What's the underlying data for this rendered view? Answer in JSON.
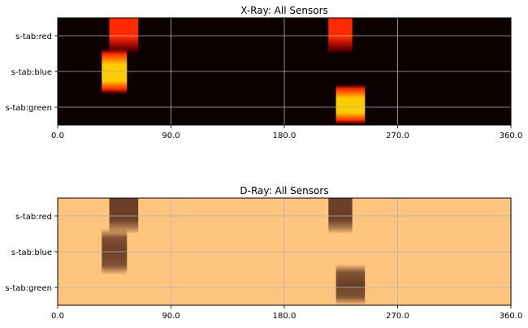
{
  "chart_data": [
    {
      "type": "heatmap",
      "title": "X-Ray: All Sensors",
      "xlabel": "",
      "ylabel": "",
      "xlim": [
        0,
        360
      ],
      "x_ticks": [
        "0.0",
        "90.0",
        "180.0",
        "270.0",
        "360.0"
      ],
      "y_ticks": [
        "s-tab:red",
        "s-tab:blue",
        "s-tab:green"
      ],
      "grid": true,
      "colormap": "hot",
      "colors": {
        "background": "#0d0000",
        "low": "#c00000",
        "mid": "#ff2a00",
        "high": "#ffcc00"
      },
      "series": [
        {
          "name": "s-tab:red",
          "blobs": [
            {
              "x_start": 41,
              "x_end": 64,
              "level": 0.85
            },
            {
              "x_start": 215,
              "x_end": 234,
              "level": 0.85
            }
          ]
        },
        {
          "name": "s-tab:blue",
          "blobs": [
            {
              "x_start": 35,
              "x_end": 55,
              "level": 1.0
            }
          ]
        },
        {
          "name": "s-tab:green",
          "blobs": [
            {
              "x_start": 221,
              "x_end": 244,
              "level": 1.0
            }
          ]
        }
      ]
    },
    {
      "type": "heatmap",
      "title": "D-Ray: All Sensors",
      "xlabel": "",
      "ylabel": "",
      "xlim": [
        0,
        360
      ],
      "x_ticks": [
        "0.0",
        "90.0",
        "180.0",
        "270.0",
        "360.0"
      ],
      "y_ticks": [
        "s-tab:red",
        "s-tab:blue",
        "s-tab:green"
      ],
      "grid": true,
      "colormap": "copper_r",
      "colors": {
        "background": "#ffc57f",
        "high": "#6b3f28"
      },
      "series": [
        {
          "name": "s-tab:red",
          "blobs": [
            {
              "x_start": 41,
              "x_end": 64,
              "level": 1.0
            },
            {
              "x_start": 215,
              "x_end": 234,
              "level": 1.0
            }
          ]
        },
        {
          "name": "s-tab:blue",
          "blobs": [
            {
              "x_start": 35,
              "x_end": 55,
              "level": 1.0
            }
          ]
        },
        {
          "name": "s-tab:green",
          "blobs": [
            {
              "x_start": 221,
              "x_end": 244,
              "level": 1.0
            }
          ]
        }
      ]
    }
  ]
}
